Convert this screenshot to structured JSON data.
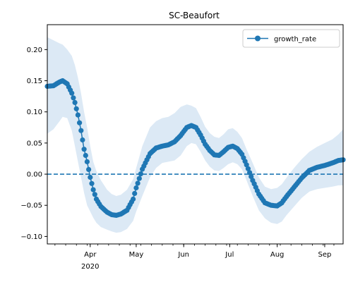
{
  "chart_data": {
    "type": "line",
    "title": "SC-Beaufort",
    "xlabel": "",
    "ylabel": "",
    "x_start": "2020-03-04",
    "x_end": "2020-09-13",
    "ylim": [
      -0.112,
      0.24
    ],
    "yticks": [
      {
        "value": 0.2,
        "label": "0.20"
      },
      {
        "value": 0.15,
        "label": "0.15"
      },
      {
        "value": 0.1,
        "label": "0.10"
      },
      {
        "value": 0.05,
        "label": "0.05"
      },
      {
        "value": 0.0,
        "label": "0.00"
      },
      {
        "value": -0.05,
        "label": "−0.05"
      },
      {
        "value": -0.1,
        "label": "−0.10"
      }
    ],
    "xticks": [
      {
        "date": "2020-04-01",
        "label": "Apr",
        "sublabel": "2020"
      },
      {
        "date": "2020-05-01",
        "label": "May",
        "sublabel": ""
      },
      {
        "date": "2020-06-01",
        "label": "Jun",
        "sublabel": ""
      },
      {
        "date": "2020-07-01",
        "label": "Jul",
        "sublabel": ""
      },
      {
        "date": "2020-08-01",
        "label": "Aug",
        "sublabel": ""
      },
      {
        "date": "2020-09-01",
        "label": "Sep",
        "sublabel": ""
      }
    ],
    "reference_line": {
      "y": 0,
      "style": "dashed"
    },
    "legend": {
      "position": "top-right",
      "entries": [
        "growth_rate"
      ]
    },
    "colors": {
      "series": "#1f77b4",
      "band": "#dce9f5"
    },
    "series": [
      {
        "name": "growth_rate",
        "style": "line-with-markers",
        "x": [
          "2020-03-04",
          "2020-03-08",
          "2020-03-12",
          "2020-03-14",
          "2020-03-17",
          "2020-03-20",
          "2020-03-22",
          "2020-03-24",
          "2020-03-26",
          "2020-03-28",
          "2020-03-30",
          "2020-04-01",
          "2020-04-03",
          "2020-04-05",
          "2020-04-08",
          "2020-04-12",
          "2020-04-15",
          "2020-04-18",
          "2020-04-21",
          "2020-04-25",
          "2020-04-29",
          "2020-05-01",
          "2020-05-05",
          "2020-05-10",
          "2020-05-14",
          "2020-05-18",
          "2020-05-22",
          "2020-05-26",
          "2020-05-30",
          "2020-06-03",
          "2020-06-06",
          "2020-06-09",
          "2020-06-12",
          "2020-06-15",
          "2020-06-18",
          "2020-06-21",
          "2020-06-24",
          "2020-06-27",
          "2020-06-30",
          "2020-07-03",
          "2020-07-06",
          "2020-07-09",
          "2020-07-12",
          "2020-07-16",
          "2020-07-20",
          "2020-07-24",
          "2020-07-28",
          "2020-08-01",
          "2020-08-04",
          "2020-08-07",
          "2020-08-12",
          "2020-08-17",
          "2020-08-22",
          "2020-08-27",
          "2020-09-01",
          "2020-09-06",
          "2020-09-10",
          "2020-09-13"
        ],
        "values": [
          0.141,
          0.142,
          0.148,
          0.15,
          0.145,
          0.13,
          0.115,
          0.095,
          0.07,
          0.04,
          0.02,
          -0.005,
          -0.025,
          -0.04,
          -0.052,
          -0.061,
          -0.065,
          -0.066,
          -0.064,
          -0.058,
          -0.04,
          -0.022,
          0.008,
          0.033,
          0.042,
          0.045,
          0.047,
          0.052,
          0.062,
          0.075,
          0.078,
          0.075,
          0.063,
          0.048,
          0.038,
          0.031,
          0.03,
          0.036,
          0.043,
          0.045,
          0.041,
          0.032,
          0.015,
          -0.01,
          -0.032,
          -0.046,
          -0.05,
          -0.051,
          -0.046,
          -0.036,
          -0.021,
          -0.006,
          0.006,
          0.011,
          0.014,
          0.018,
          0.022,
          0.023
        ],
        "lower": [
          0.065,
          0.072,
          0.085,
          0.092,
          0.09,
          0.07,
          0.045,
          0.02,
          -0.005,
          -0.03,
          -0.05,
          -0.06,
          -0.07,
          -0.078,
          -0.085,
          -0.089,
          -0.092,
          -0.094,
          -0.093,
          -0.088,
          -0.075,
          -0.06,
          -0.035,
          -0.005,
          0.01,
          0.018,
          0.02,
          0.022,
          0.03,
          0.045,
          0.05,
          0.048,
          0.036,
          0.022,
          0.012,
          0.006,
          0.005,
          0.01,
          0.016,
          0.019,
          0.016,
          0.008,
          -0.01,
          -0.035,
          -0.058,
          -0.071,
          -0.078,
          -0.08,
          -0.076,
          -0.066,
          -0.052,
          -0.038,
          -0.028,
          -0.024,
          -0.022,
          -0.02,
          -0.018,
          -0.018
        ],
        "upper": [
          0.22,
          0.215,
          0.21,
          0.208,
          0.2,
          0.19,
          0.175,
          0.155,
          0.13,
          0.1,
          0.075,
          0.045,
          0.02,
          0.005,
          -0.01,
          -0.025,
          -0.032,
          -0.035,
          -0.033,
          -0.025,
          -0.008,
          0.01,
          0.045,
          0.075,
          0.085,
          0.09,
          0.092,
          0.098,
          0.108,
          0.112,
          0.11,
          0.106,
          0.092,
          0.076,
          0.066,
          0.06,
          0.058,
          0.064,
          0.072,
          0.074,
          0.068,
          0.058,
          0.04,
          0.018,
          -0.005,
          -0.02,
          -0.024,
          -0.022,
          -0.016,
          -0.006,
          0.01,
          0.024,
          0.036,
          0.044,
          0.05,
          0.056,
          0.064,
          0.072
        ]
      }
    ]
  }
}
